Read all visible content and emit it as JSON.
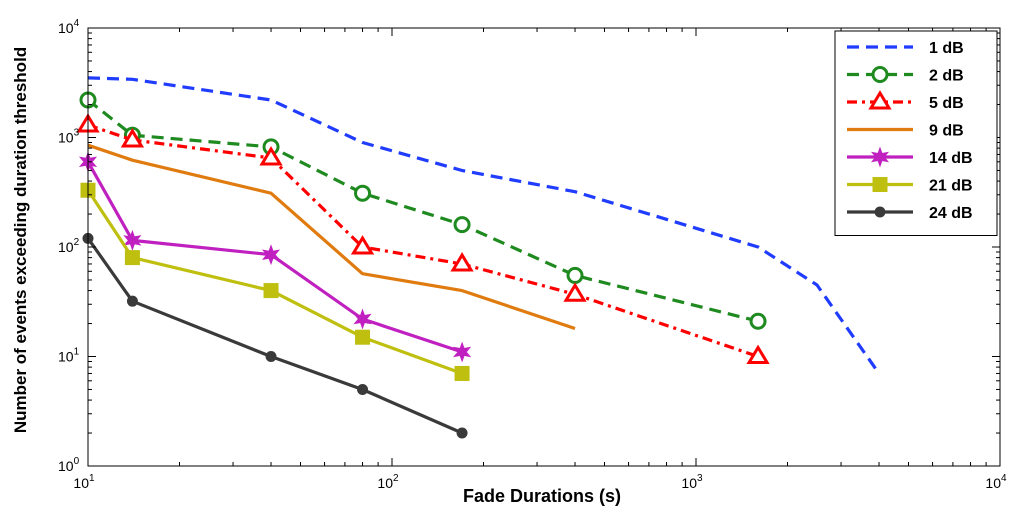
{
  "chart_data": {
    "type": "line",
    "title": "",
    "xlabel": "Fade Durations (s)",
    "ylabel": "Number of events exceeding duration threshold",
    "xscale": "log",
    "yscale": "log",
    "xlim": [
      10,
      10000
    ],
    "ylim": [
      1,
      10000
    ],
    "x_ticks": [
      10,
      100,
      1000,
      10000
    ],
    "y_ticks": [
      1,
      10,
      100,
      1000,
      10000
    ],
    "grid": false,
    "legend_position": "top-right",
    "series": [
      {
        "name": "1 dB",
        "color": "#1f3cff",
        "style": "dashed",
        "marker": "none",
        "x": [
          10,
          14,
          40,
          80,
          170,
          400,
          1600,
          2500,
          4000
        ],
        "y": [
          3500,
          3400,
          2200,
          900,
          500,
          320,
          100,
          45,
          7
        ]
      },
      {
        "name": "2 dB",
        "color": "#1f8a1f",
        "style": "dashed",
        "marker": "circle",
        "x": [
          10,
          14,
          40,
          80,
          170,
          400,
          1600
        ],
        "y": [
          2200,
          1050,
          820,
          310,
          160,
          55,
          21
        ]
      },
      {
        "name": "5 dB",
        "color": "#ff0000",
        "style": "dashdot",
        "marker": "triangle",
        "x": [
          10,
          14,
          40,
          80,
          170,
          400,
          1600
        ],
        "y": [
          1300,
          950,
          650,
          100,
          70,
          37,
          10
        ]
      },
      {
        "name": "9 dB",
        "color": "#e07b10",
        "style": "solid",
        "marker": "none",
        "x": [
          10,
          14,
          40,
          80,
          170,
          400
        ],
        "y": [
          850,
          620,
          310,
          57,
          40,
          18
        ]
      },
      {
        "name": "14 dB",
        "color": "#c020c0",
        "style": "solid",
        "marker": "star",
        "x": [
          10,
          14,
          40,
          80,
          170
        ],
        "y": [
          600,
          115,
          85,
          22,
          11
        ]
      },
      {
        "name": "21 dB",
        "color": "#bfbf10",
        "style": "solid",
        "marker": "square",
        "x": [
          10,
          14,
          40,
          80,
          170
        ],
        "y": [
          330,
          80,
          40,
          15,
          7
        ]
      },
      {
        "name": "24 dB",
        "color": "#3a3a3a",
        "style": "solid",
        "marker": "dot",
        "x": [
          10,
          14,
          40,
          80,
          170
        ],
        "y": [
          120,
          32,
          10,
          5,
          2
        ]
      }
    ]
  }
}
